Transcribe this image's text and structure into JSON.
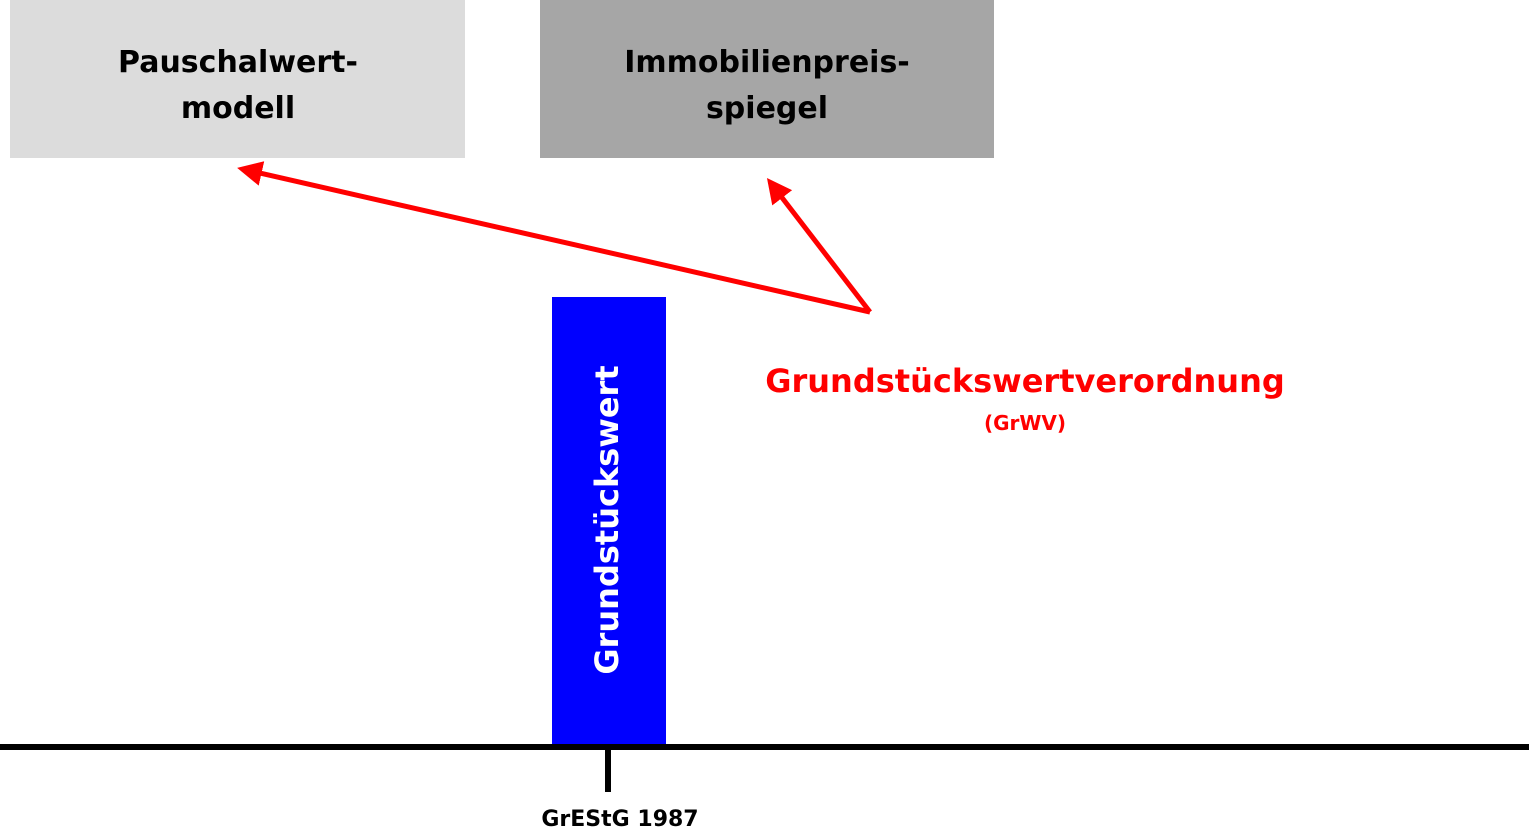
{
  "boxes": [
    {
      "label": "Pauschalwert-",
      "label2": "modell"
    },
    {
      "label": "Immobilienpreis-",
      "label2": "spiegel"
    }
  ],
  "bar": {
    "label": "Grundstückswert"
  },
  "regulation": {
    "title": "Grundstückswertverordnung",
    "abbr": "(GrWV)"
  },
  "timeline": {
    "label": "GrEStG 1987"
  }
}
